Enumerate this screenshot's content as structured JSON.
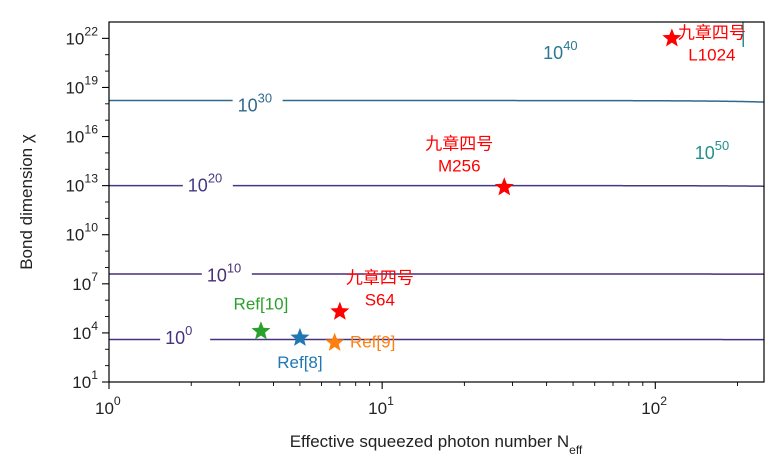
{
  "chart_data": {
    "type": "line",
    "xlabel": "Effective squeezed photon number N",
    "xlabel_sub": "eff",
    "ylabel": "Bond dimension χ",
    "x_scale": "log",
    "y_scale": "log",
    "xlim": [
      1,
      250
    ],
    "ylim_exp": [
      1,
      23
    ],
    "grid": false,
    "x_ticks": [
      {
        "value": 1,
        "base": "10",
        "exp": "0"
      },
      {
        "value": 10,
        "base": "10",
        "exp": "1"
      },
      {
        "value": 100,
        "base": "10",
        "exp": "2"
      }
    ],
    "y_ticks": [
      {
        "exp_value": 1,
        "base": "10",
        "exp": "1"
      },
      {
        "exp_value": 4,
        "base": "10",
        "exp": "4"
      },
      {
        "exp_value": 7,
        "base": "10",
        "exp": "7"
      },
      {
        "exp_value": 10,
        "base": "10",
        "exp": "10"
      },
      {
        "exp_value": 13,
        "base": "10",
        "exp": "13"
      },
      {
        "exp_value": 16,
        "base": "10",
        "exp": "16"
      },
      {
        "exp_value": 19,
        "base": "10",
        "exp": "19"
      },
      {
        "exp_value": 22,
        "base": "10",
        "exp": "22"
      }
    ],
    "contours": [
      {
        "level_base": "10",
        "level_exp": "0",
        "color": "#46327e",
        "asymptote_exp": 3.6,
        "edge_x": 1000,
        "label_x": 1.9,
        "label_y_exp": 3.7
      },
      {
        "level_base": "10",
        "level_exp": "10",
        "color": "#482f78",
        "asymptote_exp": 7.6,
        "edge_x": 1200,
        "label_x": 2.7,
        "label_y_exp": 7.5
      },
      {
        "level_base": "10",
        "level_exp": "20",
        "color": "#443983",
        "asymptote_exp": 13.0,
        "edge_x": 650,
        "label_x": 2.3,
        "label_y_exp": 13.0
      },
      {
        "level_base": "10",
        "level_exp": "30",
        "color": "#31688e",
        "asymptote_exp": 18.2,
        "edge_x": 420,
        "label_x": 3.5,
        "label_y_exp": 17.9
      },
      {
        "level_base": "10",
        "level_exp": "40",
        "color": "#2a788e",
        "asymptote_exp": 23.9,
        "edge_x": 340,
        "label_x": 46,
        "label_y_exp": 21.1
      },
      {
        "level_base": "10",
        "level_exp": "50",
        "color": "#21918c",
        "asymptote_exp": 29.0,
        "edge_x": 210,
        "label_x": 165,
        "label_y_exp": 15.0
      }
    ],
    "points": [
      {
        "name": "Ref[10]",
        "x": 3.6,
        "y_exp": 4.1,
        "color": "#2ca02c",
        "label_dx": 0,
        "label_dy": -22
      },
      {
        "name": "Ref[8]",
        "x": 5.0,
        "y_exp": 3.7,
        "color": "#1f77b4",
        "label_dx": 0,
        "label_dy": 30
      },
      {
        "name": "Ref[9]",
        "x": 6.7,
        "y_exp": 3.4,
        "color": "#ff7f0e",
        "label_dx": 38,
        "label_dy": 5
      },
      {
        "name": "九章四号 S64",
        "line1": "九章四号",
        "line2": "S64",
        "x": 7.0,
        "y_exp": 5.3,
        "color": "#ff0000",
        "label_dx": 40,
        "label_dy": -28
      },
      {
        "name": "九章四号 M256",
        "line1": "九章四号",
        "line2": "M256",
        "x": 28,
        "y_exp": 12.9,
        "color": "#ff0000",
        "label_dx": -45,
        "label_dy": -38
      },
      {
        "name": "九章四号 L1024",
        "line1": "九章四号",
        "line2": "L1024",
        "x": 115,
        "y_exp": 22.0,
        "color": "#ff0000",
        "label_dx": 40,
        "label_dy": 0
      }
    ]
  }
}
